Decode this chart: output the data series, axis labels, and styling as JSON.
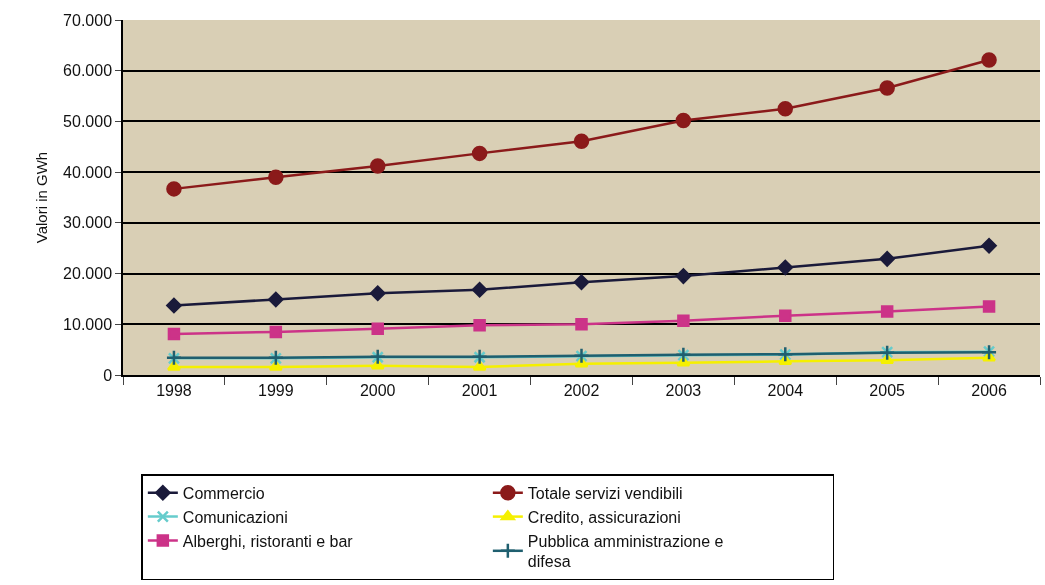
{
  "chart_data": {
    "type": "line",
    "ylabel": "Valori in GWh",
    "categories": [
      "1998",
      "1999",
      "2000",
      "2001",
      "2002",
      "2003",
      "2004",
      "2005",
      "2006"
    ],
    "ylim": [
      0,
      70000
    ],
    "yticks": [
      {
        "value": 0,
        "label": "0"
      },
      {
        "value": 10000,
        "label": "10.000"
      },
      {
        "value": 20000,
        "label": "20.000"
      },
      {
        "value": 30000,
        "label": "30.000"
      },
      {
        "value": 40000,
        "label": "40.000"
      },
      {
        "value": 50000,
        "label": "50.000"
      },
      {
        "value": 60000,
        "label": "60.000"
      },
      {
        "value": 70000,
        "label": "70.000"
      }
    ],
    "grid": "y",
    "legend": "bottom",
    "series": [
      {
        "name": "Commercio",
        "color": "#1a1a3a",
        "marker": "diamond",
        "values": [
          13700,
          14900,
          16100,
          16800,
          18300,
          19500,
          21200,
          22900,
          25500
        ]
      },
      {
        "name": "Totale servizi vendibili",
        "color": "#8b1a1a",
        "marker": "circle",
        "values": [
          36700,
          39000,
          41200,
          43700,
          46100,
          50200,
          52500,
          56600,
          62100
        ]
      },
      {
        "name": "Comunicazioni",
        "color": "#66cccc",
        "marker": "cross",
        "values": [
          3300,
          3300,
          3500,
          3500,
          3700,
          3900,
          4000,
          4500,
          4600
        ]
      },
      {
        "name": "Credito, assicurazioni",
        "color": "#f5f000",
        "marker": "triangle",
        "values": [
          1600,
          1600,
          1800,
          1600,
          2200,
          2400,
          2700,
          2900,
          3400
        ]
      },
      {
        "name": "Alberghi, ristoranti e bar",
        "color": "#cc3388",
        "marker": "square",
        "values": [
          8100,
          8500,
          9100,
          9800,
          10000,
          10700,
          11700,
          12500,
          13500
        ]
      },
      {
        "name": "Pubblica amministrazione e difesa",
        "color": "#1f5f6f",
        "marker": "cross",
        "values": [
          3400,
          3400,
          3600,
          3600,
          3800,
          4000,
          4100,
          4400,
          4500
        ]
      }
    ]
  }
}
